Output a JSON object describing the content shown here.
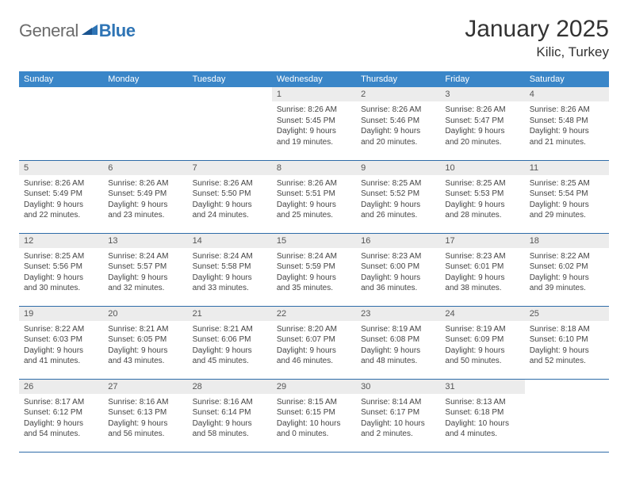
{
  "logo": {
    "general": "General",
    "blue": "Blue"
  },
  "title": "January 2025",
  "location": "Kilic, Turkey",
  "colors": {
    "header_bg": "#3a86c8",
    "header_text": "#ffffff",
    "daynum_bg": "#ececec",
    "row_border": "#2e6ca8",
    "logo_gray": "#6b6b6b",
    "logo_blue": "#2e74b5",
    "text": "#333333",
    "info_text": "#444444"
  },
  "daysOfWeek": [
    "Sunday",
    "Monday",
    "Tuesday",
    "Wednesday",
    "Thursday",
    "Friday",
    "Saturday"
  ],
  "weeks": [
    [
      {
        "n": "",
        "sr": "",
        "ss": "",
        "dl1": "",
        "dl2": ""
      },
      {
        "n": "",
        "sr": "",
        "ss": "",
        "dl1": "",
        "dl2": ""
      },
      {
        "n": "",
        "sr": "",
        "ss": "",
        "dl1": "",
        "dl2": ""
      },
      {
        "n": "1",
        "sr": "Sunrise: 8:26 AM",
        "ss": "Sunset: 5:45 PM",
        "dl1": "Daylight: 9 hours",
        "dl2": "and 19 minutes."
      },
      {
        "n": "2",
        "sr": "Sunrise: 8:26 AM",
        "ss": "Sunset: 5:46 PM",
        "dl1": "Daylight: 9 hours",
        "dl2": "and 20 minutes."
      },
      {
        "n": "3",
        "sr": "Sunrise: 8:26 AM",
        "ss": "Sunset: 5:47 PM",
        "dl1": "Daylight: 9 hours",
        "dl2": "and 20 minutes."
      },
      {
        "n": "4",
        "sr": "Sunrise: 8:26 AM",
        "ss": "Sunset: 5:48 PM",
        "dl1": "Daylight: 9 hours",
        "dl2": "and 21 minutes."
      }
    ],
    [
      {
        "n": "5",
        "sr": "Sunrise: 8:26 AM",
        "ss": "Sunset: 5:49 PM",
        "dl1": "Daylight: 9 hours",
        "dl2": "and 22 minutes."
      },
      {
        "n": "6",
        "sr": "Sunrise: 8:26 AM",
        "ss": "Sunset: 5:49 PM",
        "dl1": "Daylight: 9 hours",
        "dl2": "and 23 minutes."
      },
      {
        "n": "7",
        "sr": "Sunrise: 8:26 AM",
        "ss": "Sunset: 5:50 PM",
        "dl1": "Daylight: 9 hours",
        "dl2": "and 24 minutes."
      },
      {
        "n": "8",
        "sr": "Sunrise: 8:26 AM",
        "ss": "Sunset: 5:51 PM",
        "dl1": "Daylight: 9 hours",
        "dl2": "and 25 minutes."
      },
      {
        "n": "9",
        "sr": "Sunrise: 8:25 AM",
        "ss": "Sunset: 5:52 PM",
        "dl1": "Daylight: 9 hours",
        "dl2": "and 26 minutes."
      },
      {
        "n": "10",
        "sr": "Sunrise: 8:25 AM",
        "ss": "Sunset: 5:53 PM",
        "dl1": "Daylight: 9 hours",
        "dl2": "and 28 minutes."
      },
      {
        "n": "11",
        "sr": "Sunrise: 8:25 AM",
        "ss": "Sunset: 5:54 PM",
        "dl1": "Daylight: 9 hours",
        "dl2": "and 29 minutes."
      }
    ],
    [
      {
        "n": "12",
        "sr": "Sunrise: 8:25 AM",
        "ss": "Sunset: 5:56 PM",
        "dl1": "Daylight: 9 hours",
        "dl2": "and 30 minutes."
      },
      {
        "n": "13",
        "sr": "Sunrise: 8:24 AM",
        "ss": "Sunset: 5:57 PM",
        "dl1": "Daylight: 9 hours",
        "dl2": "and 32 minutes."
      },
      {
        "n": "14",
        "sr": "Sunrise: 8:24 AM",
        "ss": "Sunset: 5:58 PM",
        "dl1": "Daylight: 9 hours",
        "dl2": "and 33 minutes."
      },
      {
        "n": "15",
        "sr": "Sunrise: 8:24 AM",
        "ss": "Sunset: 5:59 PM",
        "dl1": "Daylight: 9 hours",
        "dl2": "and 35 minutes."
      },
      {
        "n": "16",
        "sr": "Sunrise: 8:23 AM",
        "ss": "Sunset: 6:00 PM",
        "dl1": "Daylight: 9 hours",
        "dl2": "and 36 minutes."
      },
      {
        "n": "17",
        "sr": "Sunrise: 8:23 AM",
        "ss": "Sunset: 6:01 PM",
        "dl1": "Daylight: 9 hours",
        "dl2": "and 38 minutes."
      },
      {
        "n": "18",
        "sr": "Sunrise: 8:22 AM",
        "ss": "Sunset: 6:02 PM",
        "dl1": "Daylight: 9 hours",
        "dl2": "and 39 minutes."
      }
    ],
    [
      {
        "n": "19",
        "sr": "Sunrise: 8:22 AM",
        "ss": "Sunset: 6:03 PM",
        "dl1": "Daylight: 9 hours",
        "dl2": "and 41 minutes."
      },
      {
        "n": "20",
        "sr": "Sunrise: 8:21 AM",
        "ss": "Sunset: 6:05 PM",
        "dl1": "Daylight: 9 hours",
        "dl2": "and 43 minutes."
      },
      {
        "n": "21",
        "sr": "Sunrise: 8:21 AM",
        "ss": "Sunset: 6:06 PM",
        "dl1": "Daylight: 9 hours",
        "dl2": "and 45 minutes."
      },
      {
        "n": "22",
        "sr": "Sunrise: 8:20 AM",
        "ss": "Sunset: 6:07 PM",
        "dl1": "Daylight: 9 hours",
        "dl2": "and 46 minutes."
      },
      {
        "n": "23",
        "sr": "Sunrise: 8:19 AM",
        "ss": "Sunset: 6:08 PM",
        "dl1": "Daylight: 9 hours",
        "dl2": "and 48 minutes."
      },
      {
        "n": "24",
        "sr": "Sunrise: 8:19 AM",
        "ss": "Sunset: 6:09 PM",
        "dl1": "Daylight: 9 hours",
        "dl2": "and 50 minutes."
      },
      {
        "n": "25",
        "sr": "Sunrise: 8:18 AM",
        "ss": "Sunset: 6:10 PM",
        "dl1": "Daylight: 9 hours",
        "dl2": "and 52 minutes."
      }
    ],
    [
      {
        "n": "26",
        "sr": "Sunrise: 8:17 AM",
        "ss": "Sunset: 6:12 PM",
        "dl1": "Daylight: 9 hours",
        "dl2": "and 54 minutes."
      },
      {
        "n": "27",
        "sr": "Sunrise: 8:16 AM",
        "ss": "Sunset: 6:13 PM",
        "dl1": "Daylight: 9 hours",
        "dl2": "and 56 minutes."
      },
      {
        "n": "28",
        "sr": "Sunrise: 8:16 AM",
        "ss": "Sunset: 6:14 PM",
        "dl1": "Daylight: 9 hours",
        "dl2": "and 58 minutes."
      },
      {
        "n": "29",
        "sr": "Sunrise: 8:15 AM",
        "ss": "Sunset: 6:15 PM",
        "dl1": "Daylight: 10 hours",
        "dl2": "and 0 minutes."
      },
      {
        "n": "30",
        "sr": "Sunrise: 8:14 AM",
        "ss": "Sunset: 6:17 PM",
        "dl1": "Daylight: 10 hours",
        "dl2": "and 2 minutes."
      },
      {
        "n": "31",
        "sr": "Sunrise: 8:13 AM",
        "ss": "Sunset: 6:18 PM",
        "dl1": "Daylight: 10 hours",
        "dl2": "and 4 minutes."
      },
      {
        "n": "",
        "sr": "",
        "ss": "",
        "dl1": "",
        "dl2": ""
      }
    ]
  ]
}
